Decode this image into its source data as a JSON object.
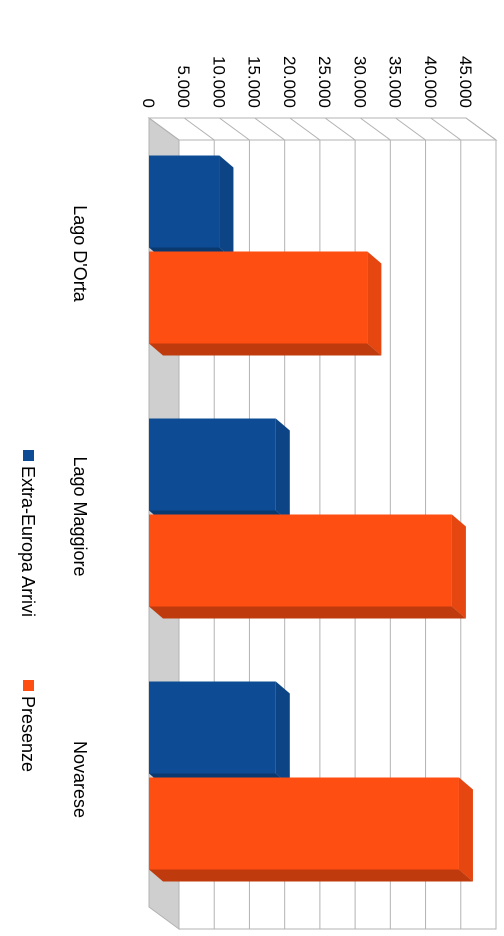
{
  "chart_data": {
    "type": "bar",
    "orientation": "rotated-90-clockwise",
    "style": "3d",
    "categories": [
      "Lago D'Orta",
      "Lago Maggiore",
      "Novarese"
    ],
    "series": [
      {
        "name": "Extra-Europa Arrivi",
        "color": "#0d4c95",
        "values": [
          10000,
          18000,
          18000
        ]
      },
      {
        "name": "Presenze",
        "color": "#ff4e12",
        "values": [
          31000,
          43000,
          44000
        ]
      }
    ],
    "yticks": [
      "0",
      "5.000",
      "10.000",
      "15.000",
      "20.000",
      "25.000",
      "30.000",
      "35.000",
      "40.000",
      "45.000"
    ],
    "ylim": [
      0,
      45000
    ],
    "grid": true,
    "legend_position": "bottom"
  }
}
